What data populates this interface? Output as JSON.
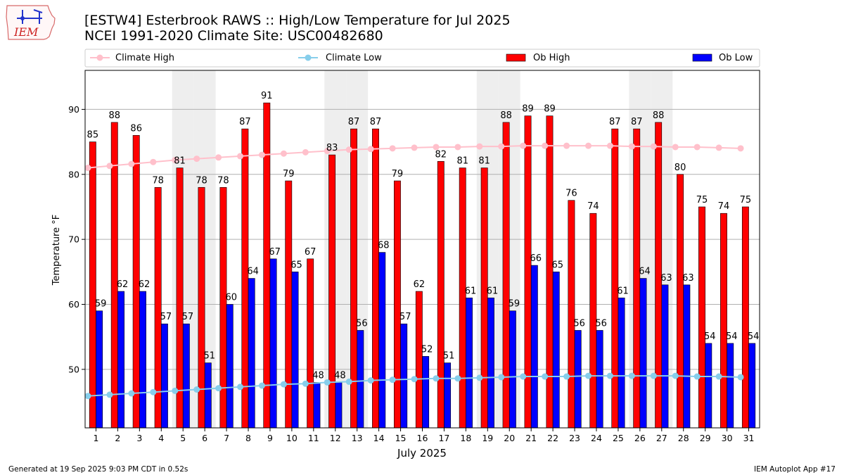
{
  "header": {
    "logo_text": "IEM",
    "title_line1": "[ESTW4] Esterbrook RAWS :: High/Low Temperature for Jul 2025",
    "title_line2": "NCEI 1991-2020 Climate Site: USC00482680"
  },
  "footer": {
    "generated": "Generated at 19 Sep 2025 9:03 PM CDT in 0.52s",
    "app": "IEM Autoplot App #17"
  },
  "chart_data": {
    "type": "bar",
    "xlabel": "July 2025",
    "ylabel": "Temperature °F",
    "ylim": [
      41,
      96
    ],
    "yticks": [
      50,
      60,
      70,
      80,
      90
    ],
    "grid": "horizontal",
    "legend_placement": "top",
    "categories": [
      1,
      2,
      3,
      4,
      5,
      6,
      7,
      8,
      9,
      10,
      11,
      12,
      13,
      14,
      15,
      16,
      17,
      18,
      19,
      20,
      21,
      22,
      23,
      24,
      25,
      26,
      27,
      28,
      29,
      30,
      31
    ],
    "weekend_days": [
      5,
      6,
      12,
      13,
      19,
      20,
      26,
      27
    ],
    "series": [
      {
        "name": "Climate High",
        "kind": "line",
        "color": "#ffc0cb",
        "values": [
          81.0,
          81.3,
          81.6,
          81.9,
          82.2,
          82.4,
          82.6,
          82.8,
          83.0,
          83.2,
          83.4,
          83.6,
          83.8,
          83.9,
          84.0,
          84.1,
          84.2,
          84.2,
          84.3,
          84.3,
          84.4,
          84.4,
          84.4,
          84.4,
          84.4,
          84.3,
          84.3,
          84.2,
          84.2,
          84.1,
          84.0
        ]
      },
      {
        "name": "Climate Low",
        "kind": "line",
        "color": "#87ceeb",
        "values": [
          45.9,
          46.1,
          46.3,
          46.5,
          46.7,
          46.9,
          47.1,
          47.3,
          47.5,
          47.7,
          47.8,
          48.0,
          48.1,
          48.3,
          48.4,
          48.5,
          48.6,
          48.6,
          48.7,
          48.8,
          48.9,
          48.9,
          48.9,
          49.0,
          49.0,
          49.0,
          49.0,
          49.0,
          48.9,
          48.9,
          48.8
        ]
      },
      {
        "name": "Ob High",
        "kind": "bar",
        "color": "#ff0000",
        "values": [
          85,
          88,
          86,
          78,
          81,
          78,
          78,
          87,
          91,
          79,
          67,
          83,
          87,
          87,
          79,
          62,
          82,
          81,
          81,
          88,
          89,
          89,
          76,
          74,
          87,
          87,
          88,
          80,
          75,
          74,
          75
        ]
      },
      {
        "name": "Ob Low",
        "kind": "bar",
        "color": "#0000ff",
        "values": [
          59,
          62,
          62,
          57,
          57,
          51,
          60,
          64,
          67,
          65,
          48,
          48,
          56,
          68,
          57,
          52,
          51,
          61,
          61,
          59,
          66,
          65,
          56,
          56,
          61,
          64,
          63,
          63,
          54,
          54,
          54
        ]
      }
    ]
  }
}
